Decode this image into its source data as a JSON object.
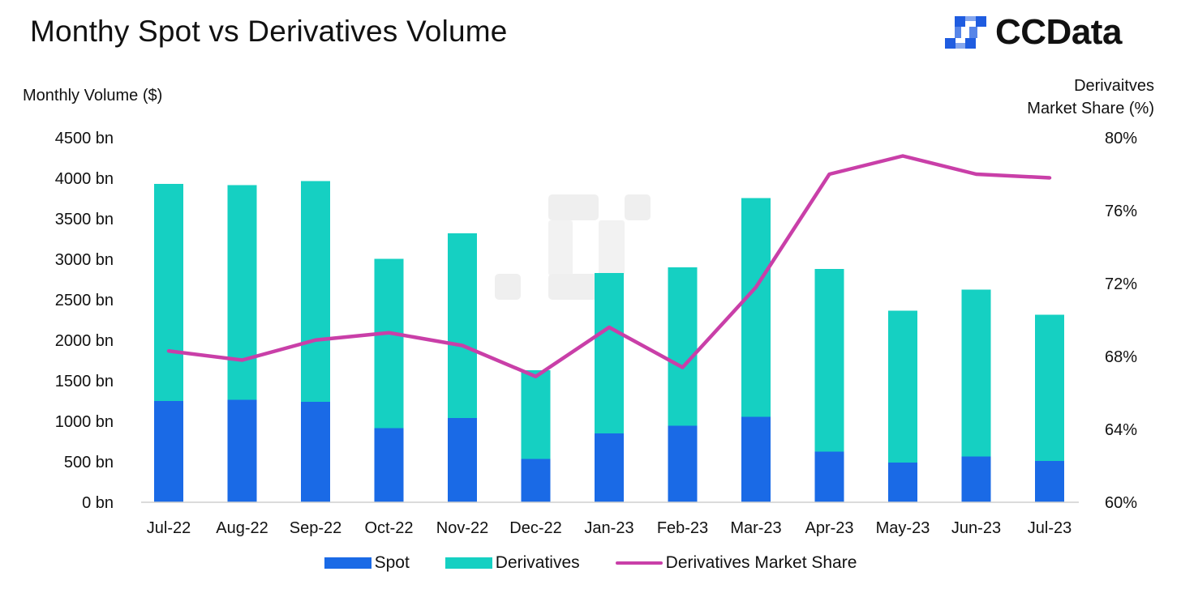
{
  "brand": {
    "name": "CCData"
  },
  "colors": {
    "spot": "#1a6ae6",
    "derivatives": "#15d0c2",
    "share": "#c93fa8",
    "brand": "#1f5ce0",
    "watermark": "#ececec",
    "axis": "#c8c8c8"
  },
  "chart_data": {
    "type": "bar",
    "stacked": true,
    "title": "Monthy Spot vs Derivatives Volume",
    "ylabel": "Monthly Volume ($)",
    "y2label": [
      "Derivaitves",
      "Market Share (%)"
    ],
    "ylim": [
      0,
      4500
    ],
    "y2lim": [
      60,
      80
    ],
    "yticks": [
      "0 bn",
      "500 bn",
      "1000 bn",
      "1500 bn",
      "2000 bn",
      "2500 bn",
      "3000 bn",
      "3500 bn",
      "4000 bn",
      "4500 bn"
    ],
    "y2ticks": [
      "60%",
      "64%",
      "68%",
      "72%",
      "76%",
      "80%"
    ],
    "categories": [
      "Jul-22",
      "Aug-22",
      "Sep-22",
      "Oct-22",
      "Nov-22",
      "Dec-22",
      "Jan-23",
      "Feb-23",
      "Mar-23",
      "Apr-23",
      "May-23",
      "Jun-23",
      "Jul-23"
    ],
    "series": [
      {
        "name": "Spot",
        "type": "bar",
        "axis": "left",
        "values": [
          1250,
          1265,
          1240,
          915,
          1040,
          535,
          850,
          945,
          1055,
          625,
          490,
          565,
          510
        ]
      },
      {
        "name": "Derivatives",
        "type": "bar",
        "axis": "left",
        "values": [
          2680,
          2650,
          2725,
          2090,
          2280,
          1095,
          1980,
          1955,
          2700,
          2255,
          1875,
          2060,
          1805
        ]
      },
      {
        "name": "Derivatives Market Share",
        "type": "line",
        "axis": "right",
        "values": [
          68.3,
          67.8,
          68.9,
          69.3,
          68.6,
          66.9,
          69.6,
          67.4,
          71.8,
          78.0,
          79.0,
          78.0,
          77.8
        ]
      }
    ],
    "legend": [
      "Spot",
      "Derivatives",
      "Derivatives Market Share"
    ],
    "legend_position": "bottom"
  }
}
